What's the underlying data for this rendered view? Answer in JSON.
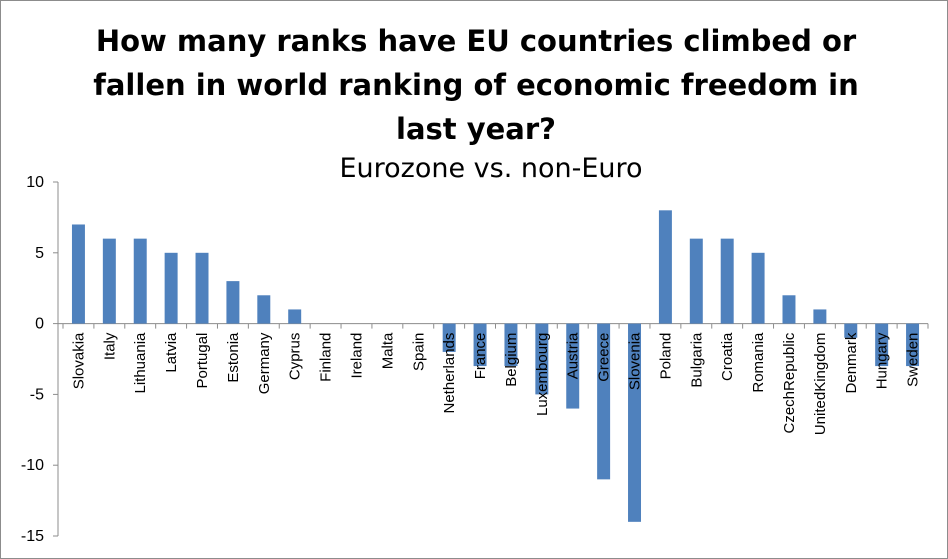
{
  "chart_data": {
    "type": "bar",
    "title": "How many ranks have EU countries climbed or fallen in world ranking of economic freedom in last year?",
    "title_lines": [
      "How many ranks have EU countries climbed or",
      "fallen in world ranking of economic freedom in",
      "last year?"
    ],
    "subtitle": "Eurozone vs. non-Euro",
    "xlabel": "",
    "ylabel": "",
    "ylim": [
      -15,
      10
    ],
    "yticks": [
      -15,
      -10,
      -5,
      0,
      5,
      10
    ],
    "grid": false,
    "legend": "none",
    "bar_color": "#4f81bd",
    "categories": [
      "Slovakia",
      "Italy",
      "Lithuania",
      "Latvia",
      "Portugal",
      "Estonia",
      "Germany",
      "Cyprus",
      "Finland",
      "Ireland",
      "Malta",
      "Spain",
      "Netherlands",
      "France",
      "Belgium",
      "Luxembourg",
      "Austria",
      "Greece",
      "Slovenia",
      "Poland",
      "Bulgaria",
      "Croatia",
      "Romania",
      "CzechRepublic",
      "UnitedKingdom",
      "Denmark",
      "Hungary",
      "Sweden"
    ],
    "values": [
      7,
      6,
      6,
      5,
      5,
      3,
      2,
      1,
      0,
      0,
      0,
      0,
      -2,
      -3,
      -3,
      -5,
      -6,
      -11,
      -14,
      8,
      6,
      6,
      5,
      2,
      1,
      -1,
      -3,
      -3
    ]
  }
}
